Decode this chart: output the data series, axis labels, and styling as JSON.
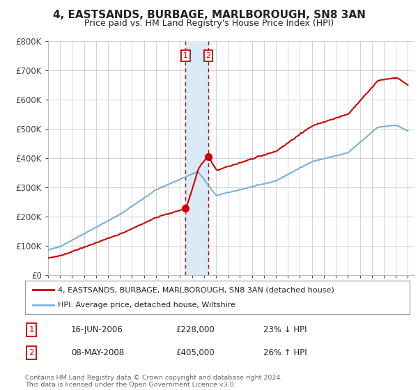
{
  "title": "4, EASTSANDS, BURBAGE, MARLBOROUGH, SN8 3AN",
  "subtitle": "Price paid vs. HM Land Registry's House Price Index (HPI)",
  "ylim": [
    0,
    800000
  ],
  "yticks": [
    0,
    100000,
    200000,
    300000,
    400000,
    500000,
    600000,
    700000,
    800000
  ],
  "ytick_labels": [
    "£0",
    "£100K",
    "£200K",
    "£300K",
    "£400K",
    "£500K",
    "£600K",
    "£700K",
    "£800K"
  ],
  "hpi_color": "#7ab0d8",
  "price_color": "#cc0000",
  "transaction1_date": "16-JUN-2006",
  "transaction1_price": 228000,
  "transaction1_label": "23% ↓ HPI",
  "transaction1_x": 2006.46,
  "transaction2_date": "08-MAY-2008",
  "transaction2_price": 405000,
  "transaction2_label": "26% ↑ HPI",
  "transaction2_x": 2008.36,
  "shade_color": "#daeaf7",
  "vline_color": "#cc0000",
  "legend_line1": "4, EASTSANDS, BURBAGE, MARLBOROUGH, SN8 3AN (detached house)",
  "legend_line2": "HPI: Average price, detached house, Wiltshire",
  "footer": "Contains HM Land Registry data © Crown copyright and database right 2024.\nThis data is licensed under the Open Government Licence v3.0.",
  "background_color": "#ffffff",
  "grid_color": "#cccccc",
  "title_fontsize": 11,
  "subtitle_fontsize": 9
}
